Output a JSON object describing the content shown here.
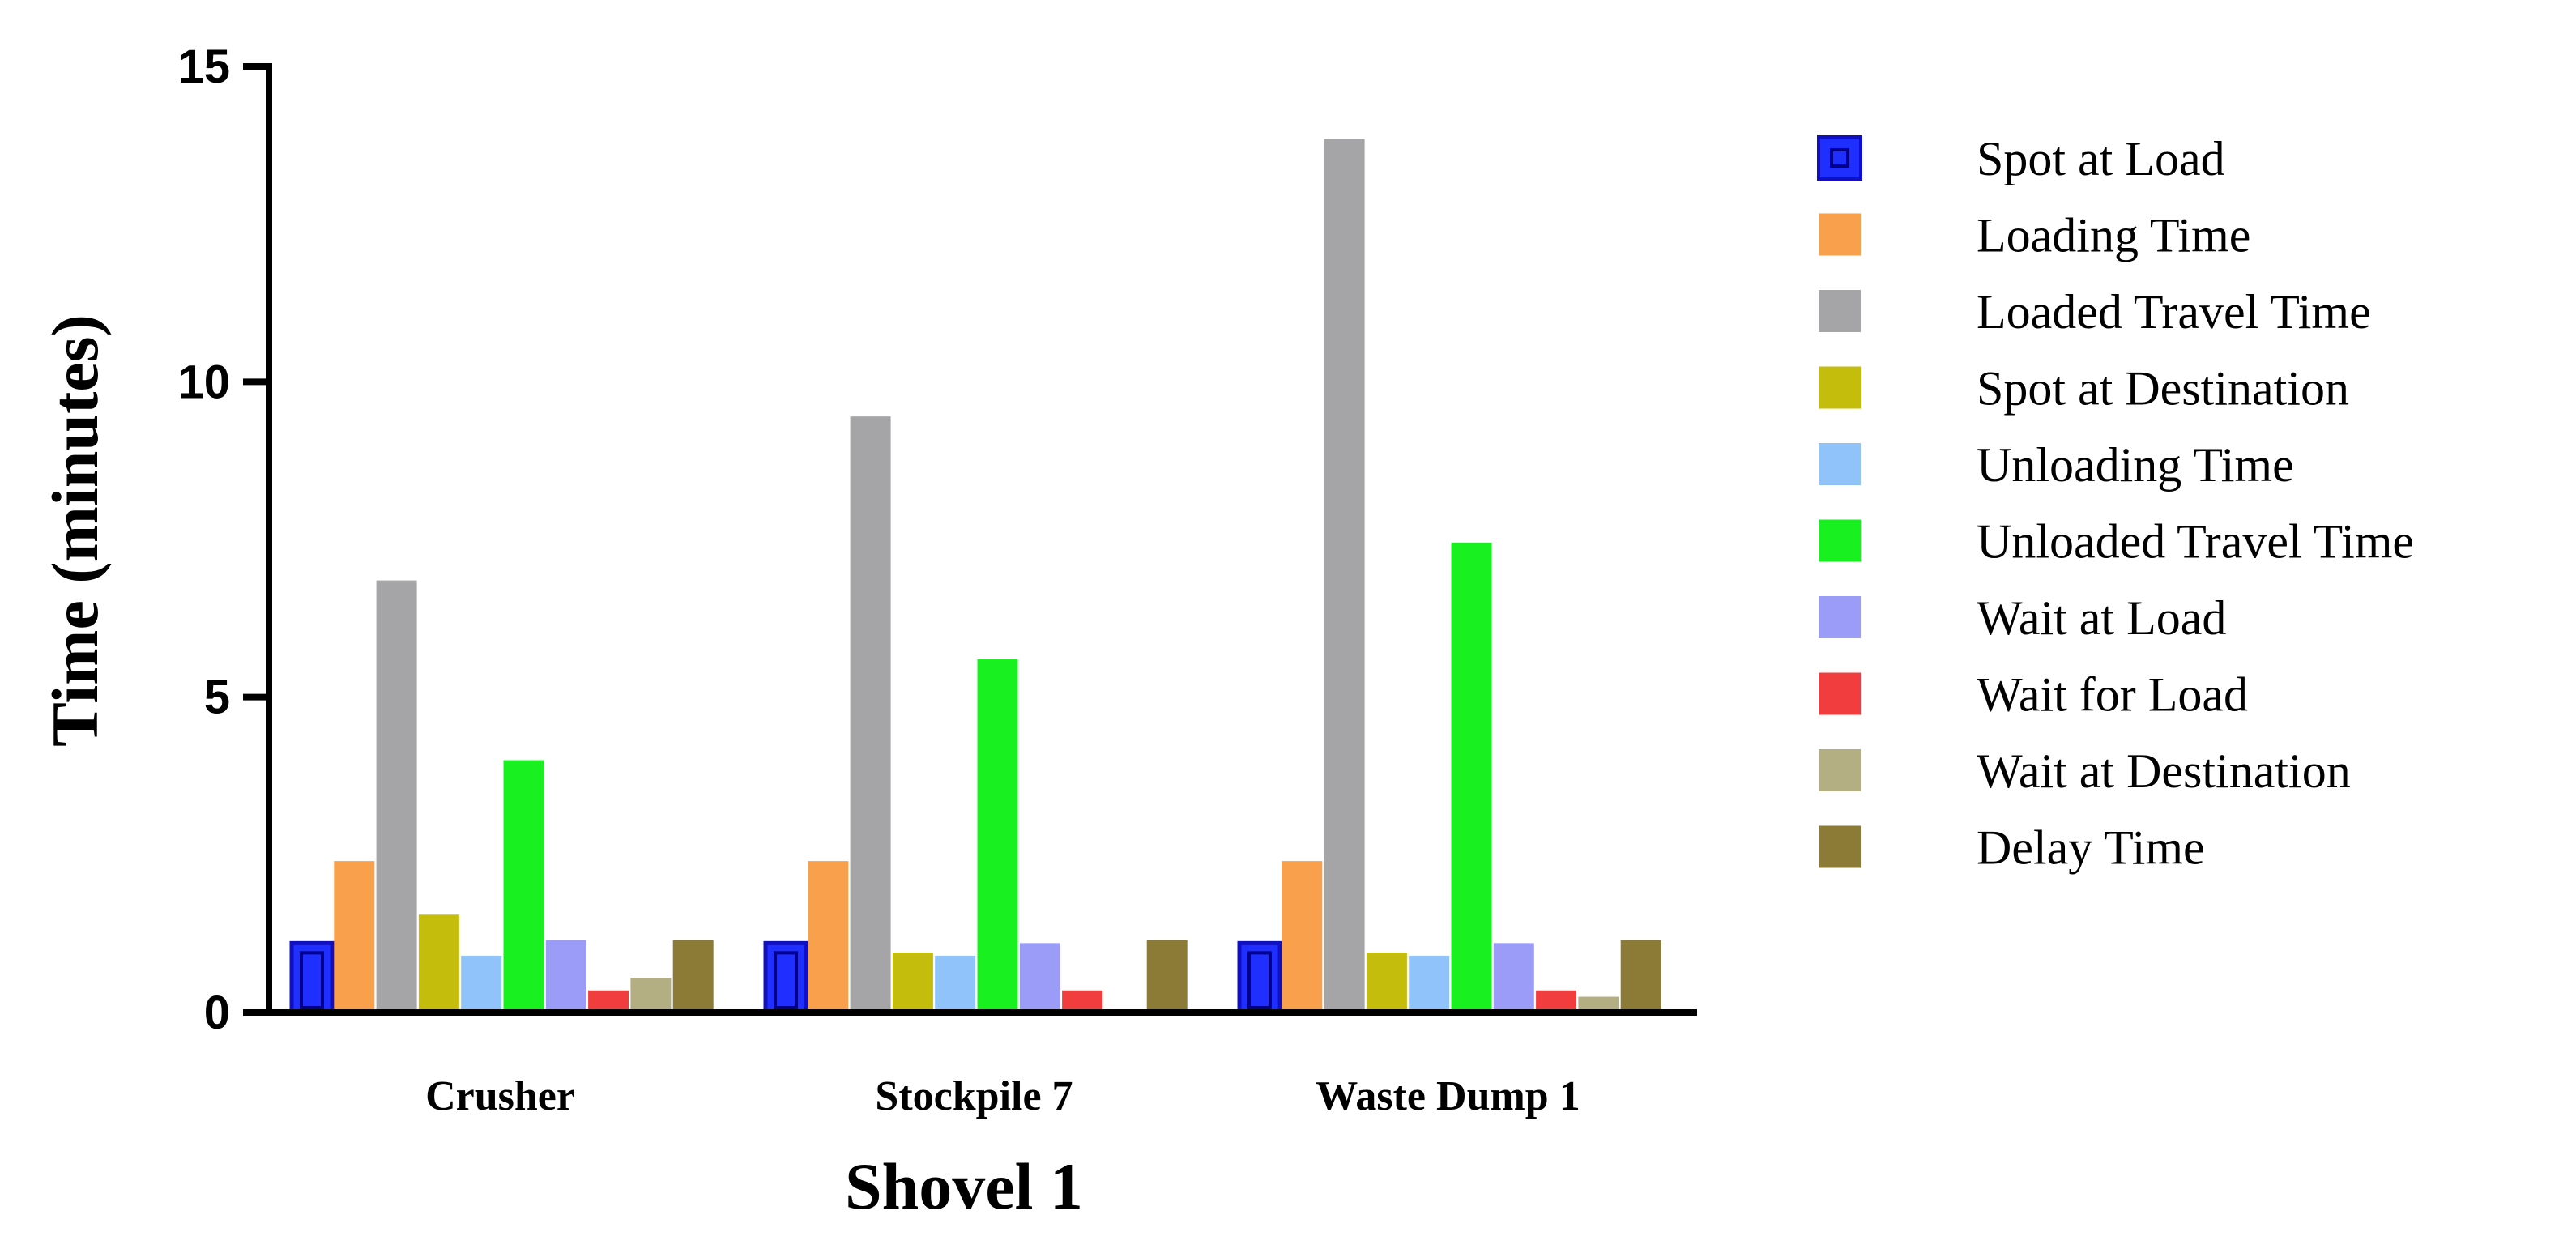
{
  "chart_data": {
    "type": "bar",
    "xlabel": "Shovel 1",
    "ylabel": "Time (minutes)",
    "ylim": [
      0,
      15
    ],
    "yticks": [
      0,
      5,
      10,
      15
    ],
    "grid": false,
    "legend_position": "right",
    "categories": [
      "Crusher",
      "Stockpile 7",
      "Waste Dump 1"
    ],
    "series": [
      {
        "name": "Spot at Load",
        "color": "#1f2fff",
        "values": [
          1.1,
          1.1,
          1.1
        ]
      },
      {
        "name": "Loading Time",
        "color": "#f9a04d",
        "values": [
          2.4,
          2.4,
          2.4
        ]
      },
      {
        "name": "Loaded Travel Time",
        "color": "#a5a5a8",
        "values": [
          6.85,
          9.45,
          13.85
        ]
      },
      {
        "name": "Spot at Destination",
        "color": "#c4bd0b",
        "values": [
          1.55,
          0.95,
          0.95
        ]
      },
      {
        "name": "Unloading Time",
        "color": "#8fc3f9",
        "values": [
          0.9,
          0.9,
          0.9
        ]
      },
      {
        "name": "Unloaded Travel Time",
        "color": "#19f01f",
        "values": [
          4.0,
          5.6,
          7.45
        ]
      },
      {
        "name": "Wait at Load",
        "color": "#9b9bf8",
        "values": [
          1.15,
          1.1,
          1.1
        ]
      },
      {
        "name": "Wait for Load",
        "color": "#f13d3d",
        "values": [
          0.35,
          0.35,
          0.35
        ]
      },
      {
        "name": "Wait at Destination",
        "color": "#b4ae83",
        "values": [
          0.55,
          0.0,
          0.25
        ]
      },
      {
        "name": "Delay Time",
        "color": "#8c7b37",
        "values": [
          1.15,
          1.15,
          1.15
        ]
      }
    ]
  }
}
